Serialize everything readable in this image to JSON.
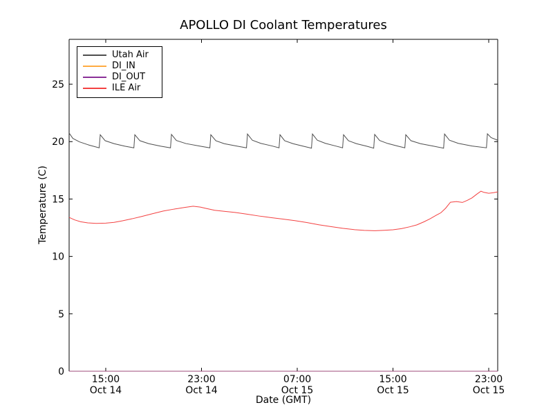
{
  "figure": {
    "title": "APOLLO DI Coolant Temperatures",
    "xlabel": "Date (GMT)",
    "ylabel": "Temperature (C)",
    "background_color": "#ffffff",
    "spine_color": "#000000"
  },
  "legend": {
    "position": "upper left",
    "entries": [
      {
        "label": "Utah Air",
        "color": "#4d4d4d"
      },
      {
        "label": "DI_IN",
        "color": "#ffab40"
      },
      {
        "label": "DI_OUT",
        "color": "#8a2f97"
      },
      {
        "label": "ILE Air",
        "color": "#f34040"
      }
    ]
  },
  "chart_data": {
    "type": "line",
    "title": "APOLLO DI Coolant Temperatures",
    "xlabel": "Date (GMT)",
    "ylabel": "Temperature (C)",
    "x_unit": "hours since Oct 14 00:00 GMT",
    "xlim": [
      11.94,
      47.75
    ],
    "ylim": [
      0,
      28.91
    ],
    "grid": false,
    "legend_position": "upper left",
    "x_ticks": [
      {
        "t": 15,
        "time": "15:00",
        "date": "Oct 14"
      },
      {
        "t": 23,
        "time": "23:00",
        "date": "Oct 14"
      },
      {
        "t": 31,
        "time": "07:00",
        "date": "Oct 15"
      },
      {
        "t": 39,
        "time": "15:00",
        "date": "Oct 15"
      },
      {
        "t": 47,
        "time": "23:00",
        "date": "Oct 15"
      }
    ],
    "y_ticks": [
      0,
      5,
      10,
      15,
      20,
      25
    ],
    "series": [
      {
        "name": "Utah Air",
        "color": "#4d4d4d",
        "opacity": 1,
        "points": [
          [
            11.94,
            20.75
          ],
          [
            12.25,
            20.28
          ],
          [
            12.8,
            19.98
          ],
          [
            13.6,
            19.7
          ],
          [
            14.45,
            19.46
          ],
          [
            14.54,
            20.6
          ],
          [
            14.95,
            20.08
          ],
          [
            15.7,
            19.82
          ],
          [
            16.6,
            19.6
          ],
          [
            17.35,
            19.46
          ],
          [
            17.43,
            20.6
          ],
          [
            17.85,
            20.08
          ],
          [
            18.6,
            19.82
          ],
          [
            19.6,
            19.6
          ],
          [
            20.41,
            19.46
          ],
          [
            20.49,
            20.63
          ],
          [
            20.9,
            20.1
          ],
          [
            21.7,
            19.83
          ],
          [
            22.9,
            19.6
          ],
          [
            23.7,
            19.46
          ],
          [
            23.78,
            20.6
          ],
          [
            24.2,
            20.08
          ],
          [
            24.9,
            19.82
          ],
          [
            26.0,
            19.6
          ],
          [
            26.76,
            19.46
          ],
          [
            26.84,
            20.66
          ],
          [
            27.25,
            20.12
          ],
          [
            27.95,
            19.85
          ],
          [
            28.9,
            19.62
          ],
          [
            29.48,
            19.46
          ],
          [
            29.56,
            20.6
          ],
          [
            29.95,
            20.08
          ],
          [
            30.65,
            19.82
          ],
          [
            31.5,
            19.6
          ],
          [
            32.19,
            19.43
          ],
          [
            32.27,
            20.66
          ],
          [
            32.68,
            20.12
          ],
          [
            33.35,
            19.85
          ],
          [
            34.2,
            19.62
          ],
          [
            34.79,
            19.46
          ],
          [
            34.87,
            20.6
          ],
          [
            35.28,
            20.08
          ],
          [
            35.95,
            19.82
          ],
          [
            36.8,
            19.6
          ],
          [
            37.39,
            19.43
          ],
          [
            37.47,
            20.63
          ],
          [
            37.88,
            20.1
          ],
          [
            38.55,
            19.84
          ],
          [
            39.4,
            19.61
          ],
          [
            39.99,
            19.46
          ],
          [
            40.07,
            20.6
          ],
          [
            40.5,
            20.08
          ],
          [
            41.3,
            19.82
          ],
          [
            42.4,
            19.6
          ],
          [
            43.23,
            19.43
          ],
          [
            43.31,
            20.66
          ],
          [
            43.72,
            20.12
          ],
          [
            44.45,
            19.85
          ],
          [
            45.6,
            19.62
          ],
          [
            46.81,
            19.46
          ],
          [
            46.89,
            20.68
          ],
          [
            47.2,
            20.35
          ],
          [
            47.75,
            20.12
          ]
        ]
      },
      {
        "name": "DI_IN",
        "color": "#ffab40",
        "opacity": 0.8,
        "points": [
          [
            11.94,
            0
          ],
          [
            47.75,
            0
          ]
        ]
      },
      {
        "name": "DI_OUT",
        "color": "#8a2f97",
        "opacity": 0.7,
        "points": [
          [
            11.94,
            0
          ],
          [
            47.75,
            0
          ]
        ]
      },
      {
        "name": "ILE Air",
        "color": "#f34040",
        "opacity": 1,
        "points": [
          [
            11.94,
            13.4
          ],
          [
            12.4,
            13.18
          ],
          [
            12.9,
            13.02
          ],
          [
            13.5,
            12.92
          ],
          [
            14.2,
            12.88
          ],
          [
            15.0,
            12.9
          ],
          [
            15.7,
            12.97
          ],
          [
            16.4,
            13.1
          ],
          [
            17.2,
            13.28
          ],
          [
            18.0,
            13.48
          ],
          [
            18.9,
            13.72
          ],
          [
            19.8,
            13.95
          ],
          [
            20.7,
            14.12
          ],
          [
            21.5,
            14.25
          ],
          [
            22.3,
            14.37
          ],
          [
            22.9,
            14.3
          ],
          [
            23.4,
            14.18
          ],
          [
            24.1,
            14.02
          ],
          [
            24.9,
            13.93
          ],
          [
            25.8,
            13.83
          ],
          [
            26.8,
            13.68
          ],
          [
            27.8,
            13.52
          ],
          [
            28.8,
            13.38
          ],
          [
            29.8,
            13.25
          ],
          [
            30.8,
            13.12
          ],
          [
            31.8,
            12.95
          ],
          [
            32.8,
            12.76
          ],
          [
            33.8,
            12.6
          ],
          [
            34.8,
            12.45
          ],
          [
            35.8,
            12.33
          ],
          [
            36.6,
            12.27
          ],
          [
            37.5,
            12.24
          ],
          [
            38.3,
            12.28
          ],
          [
            39.0,
            12.32
          ],
          [
            39.7,
            12.42
          ],
          [
            40.4,
            12.58
          ],
          [
            41.0,
            12.75
          ],
          [
            41.6,
            13.02
          ],
          [
            42.1,
            13.28
          ],
          [
            42.6,
            13.58
          ],
          [
            43.0,
            13.8
          ],
          [
            43.4,
            14.2
          ],
          [
            43.8,
            14.72
          ],
          [
            44.3,
            14.78
          ],
          [
            44.8,
            14.7
          ],
          [
            45.2,
            14.88
          ],
          [
            45.6,
            15.1
          ],
          [
            46.0,
            15.42
          ],
          [
            46.35,
            15.68
          ],
          [
            46.6,
            15.58
          ],
          [
            47.0,
            15.5
          ],
          [
            47.4,
            15.55
          ],
          [
            47.75,
            15.62
          ]
        ]
      }
    ]
  }
}
